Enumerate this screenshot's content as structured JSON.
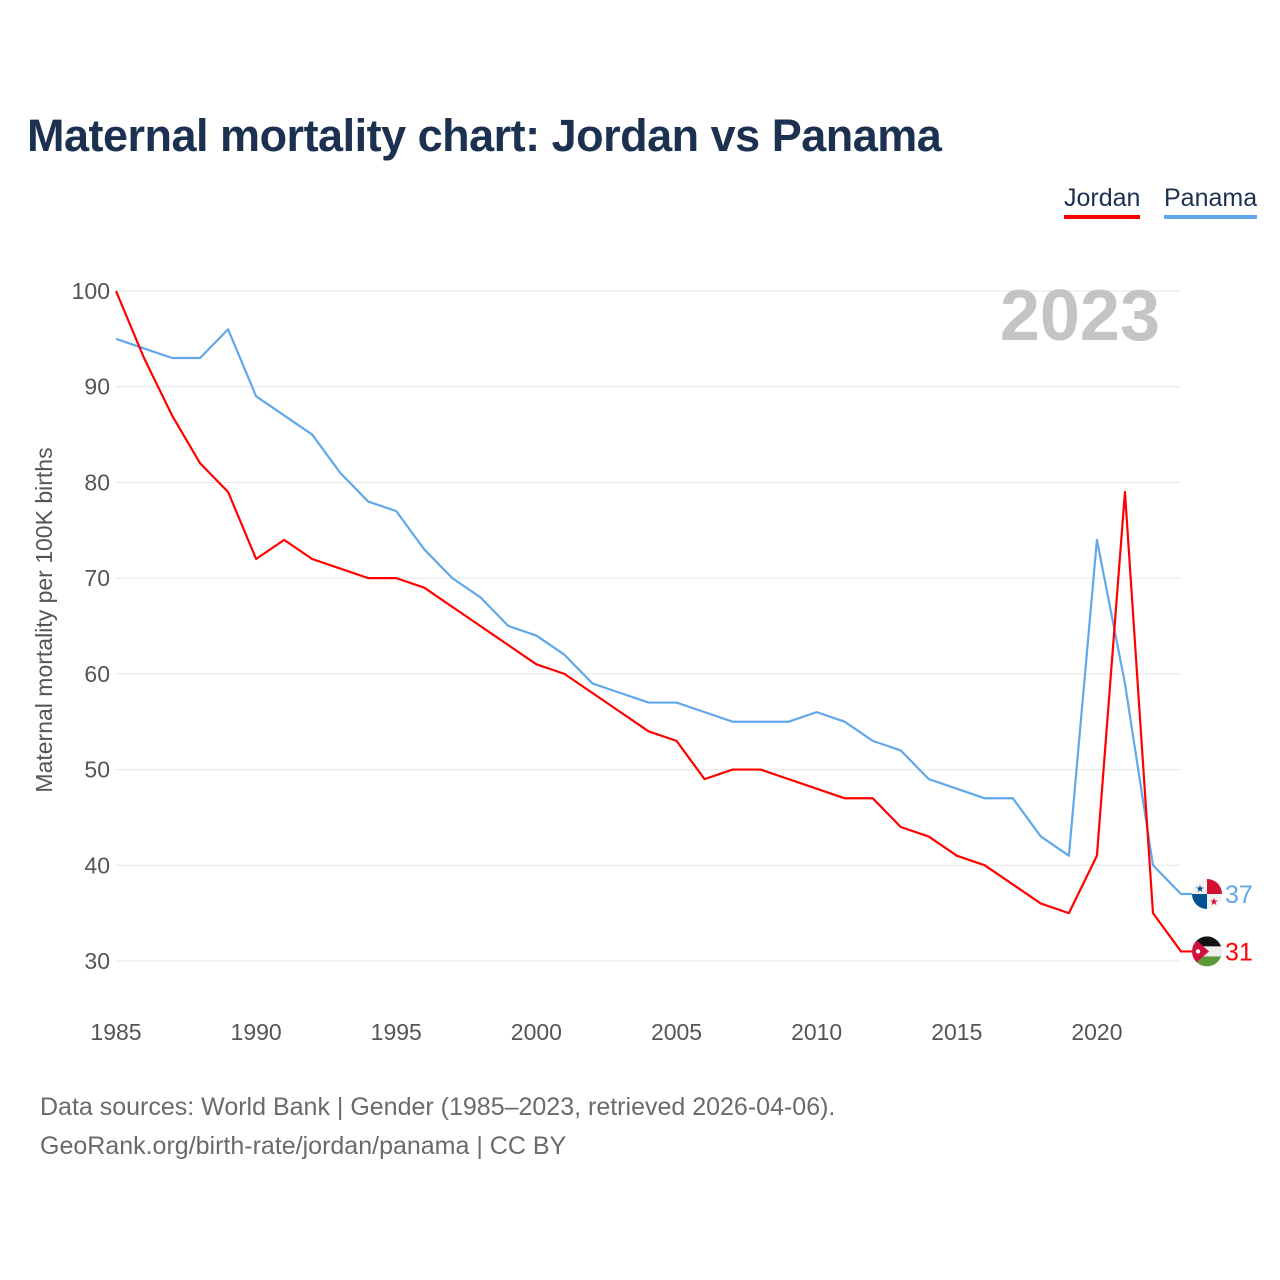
{
  "title": "Maternal mortality chart: Jordan vs Panama",
  "source_lines": [
    "Data sources: World Bank | Gender (1985–2023, retrieved 2026-04-06).",
    "GeoRank.org/birth-rate/jordan/panama | CC BY"
  ],
  "chart_data": {
    "type": "line",
    "title": "Maternal mortality chart: Jordan vs Panama",
    "xlabel": "",
    "ylabel": "Maternal mortality per 100K births",
    "year_label": "2023",
    "xlim": [
      1985,
      2023
    ],
    "ylim": [
      30,
      100
    ],
    "xticks": [
      1985,
      1990,
      1995,
      2000,
      2005,
      2010,
      2015,
      2020
    ],
    "yticks": [
      30,
      40,
      50,
      60,
      70,
      80,
      90,
      100
    ],
    "grid": true,
    "legend_placement": "top-right",
    "x": [
      1985,
      1986,
      1987,
      1988,
      1989,
      1990,
      1991,
      1992,
      1993,
      1994,
      1995,
      1996,
      1997,
      1998,
      1999,
      2000,
      2001,
      2002,
      2003,
      2004,
      2005,
      2006,
      2007,
      2008,
      2009,
      2010,
      2011,
      2012,
      2013,
      2014,
      2015,
      2016,
      2017,
      2018,
      2019,
      2020,
      2021,
      2022,
      2023
    ],
    "series": [
      {
        "name": "Jordan",
        "color": "#ff0000",
        "end_label": "31",
        "values": [
          100,
          93,
          87,
          82,
          79,
          72,
          74,
          72,
          71,
          70,
          70,
          69,
          67,
          65,
          63,
          61,
          60,
          58,
          56,
          54,
          53,
          49,
          50,
          50,
          49,
          48,
          47,
          47,
          44,
          43,
          41,
          40,
          38,
          36,
          35,
          41,
          79,
          35,
          31
        ]
      },
      {
        "name": "Panama",
        "color": "#60a8ea",
        "end_label": "37",
        "values": [
          95,
          94,
          93,
          93,
          96,
          89,
          87,
          85,
          81,
          78,
          77,
          73,
          70,
          68,
          65,
          64,
          62,
          59,
          58,
          57,
          57,
          56,
          55,
          55,
          55,
          56,
          55,
          53,
          52,
          49,
          48,
          47,
          47,
          43,
          41,
          74,
          59,
          40,
          37
        ]
      }
    ]
  }
}
